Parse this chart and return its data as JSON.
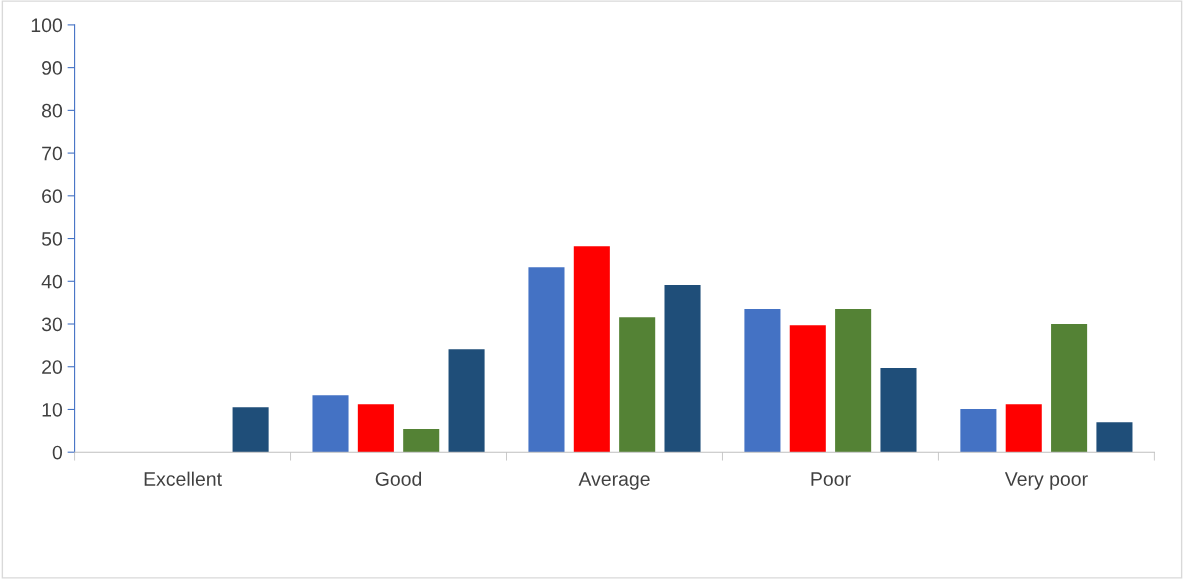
{
  "chart_data": {
    "type": "bar",
    "categories": [
      "Excellent",
      "Good",
      "Average",
      "Poor",
      "Very poor"
    ],
    "series": [
      {
        "color": "#4472c4",
        "values": [
          0,
          13.3,
          43.3,
          33.5,
          10.1
        ]
      },
      {
        "color": "#ff0000",
        "values": [
          0,
          11.2,
          48.2,
          29.7,
          11.2
        ]
      },
      {
        "color": "#548235",
        "values": [
          0,
          5.4,
          31.6,
          33.5,
          30.0
        ]
      },
      {
        "color": "#1f4e79",
        "values": [
          10.5,
          24.1,
          39.1,
          19.7,
          7.0
        ]
      }
    ],
    "ylim": [
      0,
      100
    ],
    "yticks": [
      0,
      10,
      20,
      30,
      40,
      50,
      60,
      70,
      80,
      90,
      100
    ],
    "grid": false,
    "legend": false
  }
}
